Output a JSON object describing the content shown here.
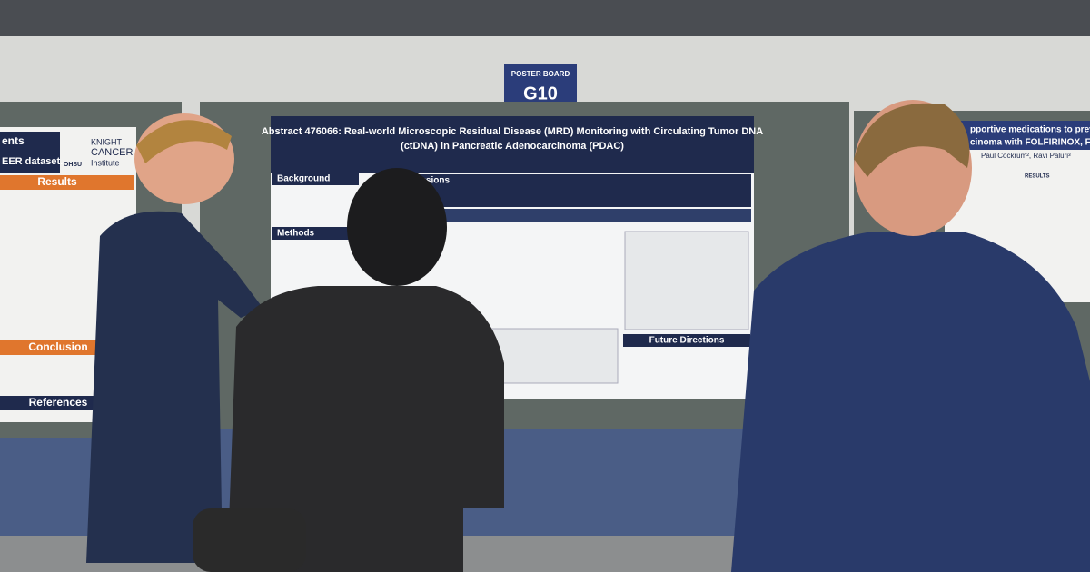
{
  "sign": {
    "label": "POSTER BOARD",
    "board": "G10"
  },
  "center_poster": {
    "title_lines": [
      "Abstract 476066: Real-world Microscopic Residual Disease (MRD) Monitoring with Circulating Tumor DNA",
      "(ctDNA) in Pancreatic Adenocarcinoma (PDAC)"
    ],
    "sections": [
      "Background",
      "Methods",
      "lusions",
      "Future Directions"
    ]
  },
  "left_poster": {
    "header_lines": [
      "ents",
      "EER dataset."
    ],
    "logo": [
      "KNIGHT",
      "CANCER",
      "Institute"
    ],
    "ohsu": "OHSU",
    "sections": [
      "Results",
      "Conclusion",
      "References"
    ]
  },
  "right_poster": {
    "title_lines": [
      "pportive medications to prevent",
      "cinoma with FOLFIRINOX, FOLF"
    ],
    "authors": "Paul Cockrum², Ravi Paluri³",
    "section": "RESULTS"
  }
}
